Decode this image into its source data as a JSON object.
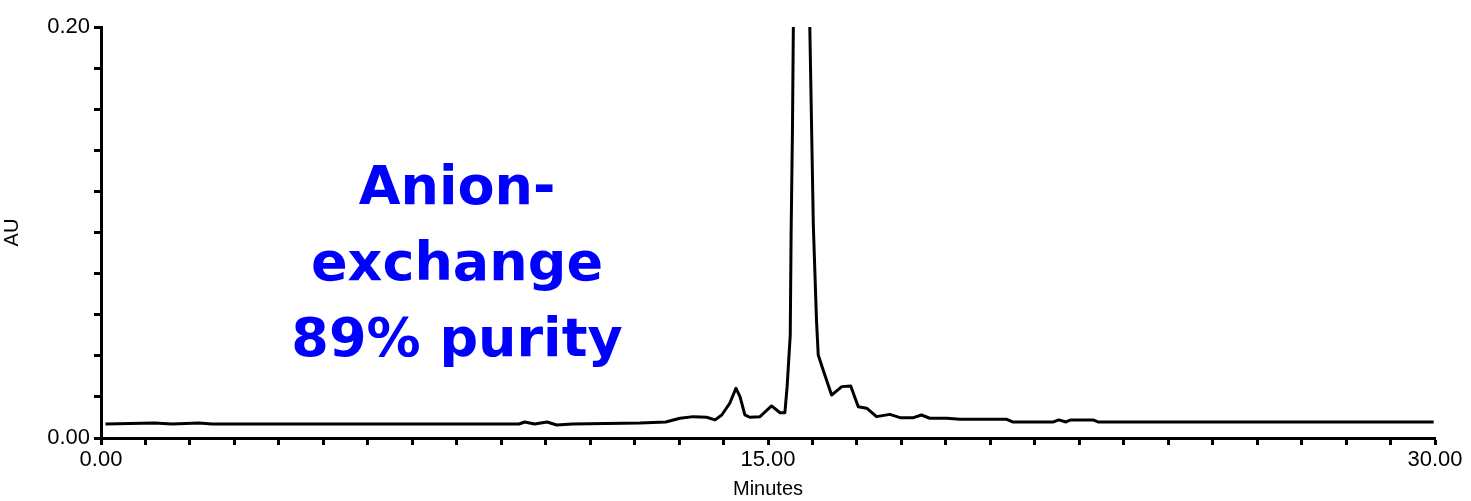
{
  "chart_data": {
    "type": "line",
    "xlabel": "Minutes",
    "ylabel": "AU",
    "annotations": [
      "Anion-\nexchange\n89% purity"
    ],
    "xlim": [
      0,
      30
    ],
    "ylim": [
      0,
      0.2
    ],
    "xticks": [
      {
        "value": 0,
        "label": "0.00"
      },
      {
        "value": 1,
        "label": null
      },
      {
        "value": 2,
        "label": null
      },
      {
        "value": 3,
        "label": null
      },
      {
        "value": 4,
        "label": null
      },
      {
        "value": 5,
        "label": null
      },
      {
        "value": 6,
        "label": null
      },
      {
        "value": 7,
        "label": null
      },
      {
        "value": 8,
        "label": null
      },
      {
        "value": 9,
        "label": null
      },
      {
        "value": 10,
        "label": null
      },
      {
        "value": 11,
        "label": null
      },
      {
        "value": 12,
        "label": null
      },
      {
        "value": 13,
        "label": null
      },
      {
        "value": 14,
        "label": null
      },
      {
        "value": 15,
        "label": "15.00"
      },
      {
        "value": 16,
        "label": null
      },
      {
        "value": 17,
        "label": null
      },
      {
        "value": 18,
        "label": null
      },
      {
        "value": 19,
        "label": null
      },
      {
        "value": 20,
        "label": null
      },
      {
        "value": 21,
        "label": null
      },
      {
        "value": 22,
        "label": null
      },
      {
        "value": 23,
        "label": null
      },
      {
        "value": 24,
        "label": null
      },
      {
        "value": 25,
        "label": null
      },
      {
        "value": 26,
        "label": null
      },
      {
        "value": 27,
        "label": null
      },
      {
        "value": 28,
        "label": null
      },
      {
        "value": 29,
        "label": null
      },
      {
        "value": 30,
        "label": "30.00"
      }
    ],
    "yticks": [
      {
        "value": 0,
        "label": "0.00"
      },
      {
        "value": 0.02,
        "label": null
      },
      {
        "value": 0.04,
        "label": null
      },
      {
        "value": 0.06,
        "label": null
      },
      {
        "value": 0.08,
        "label": null
      },
      {
        "value": 0.1,
        "label": null
      },
      {
        "value": 0.12,
        "label": null
      },
      {
        "value": 0.14,
        "label": null
      },
      {
        "value": 0.16,
        "label": null
      },
      {
        "value": 0.18,
        "label": null
      },
      {
        "value": 0.2,
        "label": "0.20"
      }
    ],
    "grid": false,
    "legend": false,
    "marker": "none",
    "line_style": "solid",
    "series": [
      {
        "color": "#000000",
        "x": [
          0.1,
          1.2,
          1.6,
          2.2,
          2.5,
          9.4,
          9.53,
          9.75,
          10.03,
          10.25,
          10.6,
          12.12,
          12.7,
          13.02,
          13.32,
          13.62,
          13.81,
          13.96,
          14.14,
          14.28,
          14.37,
          14.48,
          14.59,
          14.82,
          15.08,
          15.27,
          15.38,
          15.43,
          15.48,
          15.5,
          15.52,
          15.55,
          15.57,
          15.75,
          15.94,
          16.02,
          16.09,
          16.13,
          16.24,
          16.43,
          16.66,
          16.86,
          17.03,
          17.22,
          17.44,
          17.74,
          17.97,
          18.27,
          18.45,
          18.64,
          19.02,
          19.32,
          20.37,
          20.5,
          21.42,
          21.54,
          21.7,
          21.81,
          22.31,
          22.42,
          29.97
        ],
        "values": [
          0.0068,
          0.0073,
          0.0068,
          0.0073,
          0.0068,
          0.0068,
          0.0078,
          0.0068,
          0.0078,
          0.0063,
          0.0068,
          0.0073,
          0.0078,
          0.0096,
          0.0104,
          0.0101,
          0.0088,
          0.0112,
          0.0169,
          0.0242,
          0.0201,
          0.0112,
          0.0101,
          0.0104,
          0.0156,
          0.0123,
          0.0123,
          0.025,
          0.0429,
          0.05,
          0.1,
          0.15,
          0.2,
          null,
          0.2,
          0.103,
          0.0575,
          0.0404,
          0.0331,
          0.0209,
          0.025,
          0.0253,
          0.0152,
          0.0145,
          0.0104,
          0.0115,
          0.0099,
          0.0099,
          0.0112,
          0.0096,
          0.0096,
          0.0091,
          0.0091,
          0.0078,
          0.0078,
          0.0088,
          0.0078,
          0.0088,
          0.0088,
          0.0078,
          0.0078
        ]
      }
    ]
  }
}
